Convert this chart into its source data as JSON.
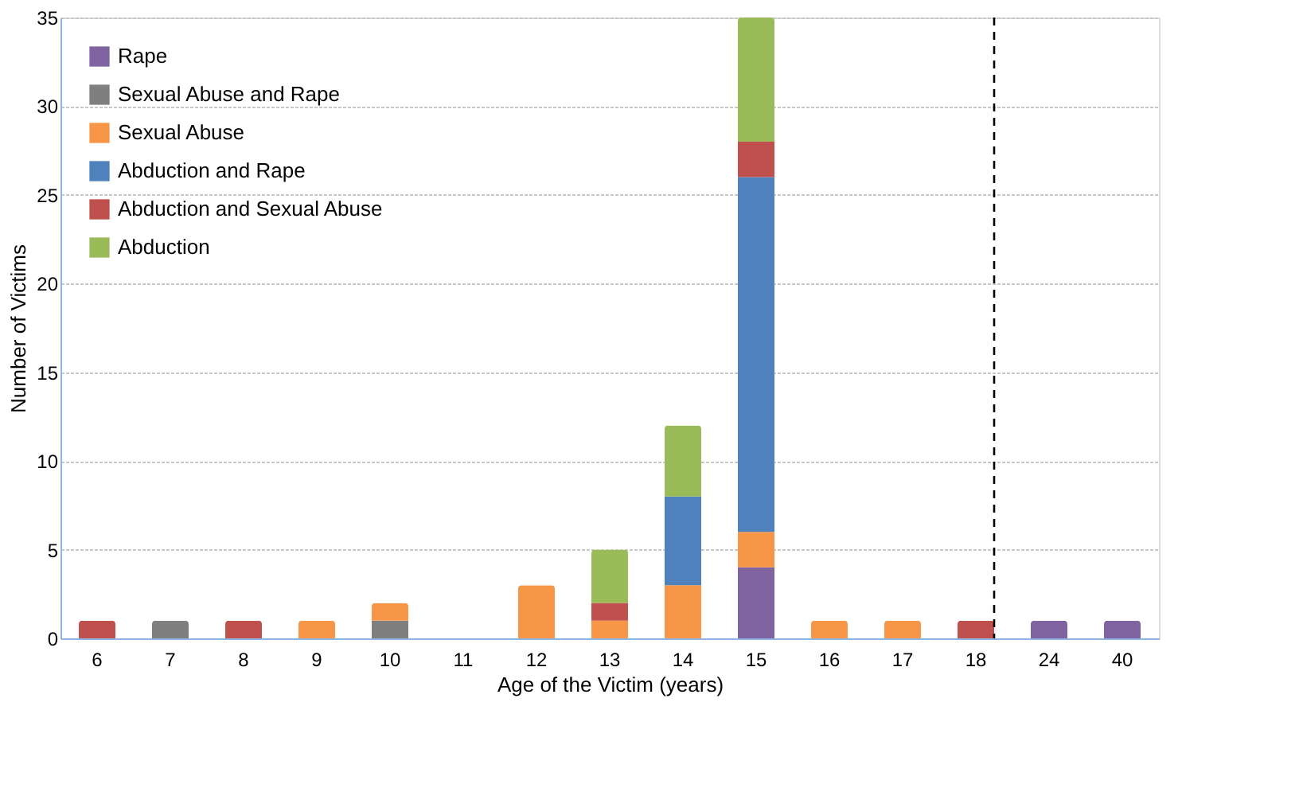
{
  "chart_data": {
    "type": "bar",
    "stacked": true,
    "xlabel": "Age of the Victim (years)",
    "ylabel": "Number of Victims",
    "categories": [
      "6",
      "7",
      "8",
      "9",
      "10",
      "11",
      "12",
      "13",
      "14",
      "15",
      "16",
      "17",
      "18",
      "24",
      "40"
    ],
    "series": [
      {
        "name": "Rape",
        "color": "#8064a2",
        "values": [
          null,
          null,
          null,
          null,
          null,
          null,
          null,
          null,
          null,
          4,
          null,
          null,
          null,
          1,
          1
        ]
      },
      {
        "name": "Sexual Abuse and Rape",
        "color": "#7f7f7f",
        "values": [
          null,
          1,
          null,
          null,
          1,
          null,
          null,
          null,
          null,
          null,
          null,
          null,
          null,
          null,
          null
        ]
      },
      {
        "name": "Sexual Abuse",
        "color": "#f79646",
        "values": [
          null,
          null,
          null,
          1,
          1,
          null,
          3,
          1,
          3,
          2,
          1,
          1,
          null,
          null,
          null
        ]
      },
      {
        "name": "Abduction and Rape",
        "color": "#4f81bd",
        "values": [
          null,
          null,
          null,
          null,
          null,
          null,
          null,
          null,
          5,
          20,
          null,
          null,
          null,
          null,
          null
        ]
      },
      {
        "name": "Abduction and Sexual Abuse",
        "color": "#c0504d",
        "values": [
          1,
          null,
          1,
          null,
          null,
          null,
          null,
          1,
          null,
          2,
          null,
          null,
          1,
          null,
          null
        ]
      },
      {
        "name": "Abduction",
        "color": "#9bbb59",
        "values": [
          null,
          null,
          null,
          null,
          null,
          null,
          null,
          3,
          4,
          7,
          null,
          null,
          null,
          null,
          null
        ]
      }
    ],
    "ylim": [
      0,
      35
    ],
    "yticks": [
      0,
      5,
      10,
      15,
      20,
      25,
      30,
      35
    ],
    "grid": "y",
    "legend": "top left",
    "ref_lines": [
      {
        "axis": "x",
        "value": "18",
        "color": "#000000",
        "line_style": "dashed"
      }
    ]
  }
}
